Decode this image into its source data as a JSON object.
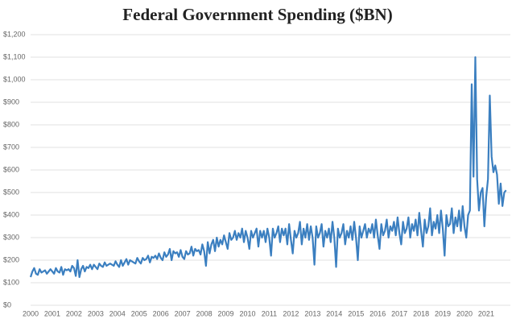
{
  "chart_data": {
    "type": "line",
    "title": "Federal Government Spending ($BN)",
    "categories": [
      "2000",
      null,
      null,
      null,
      null,
      null,
      null,
      null,
      null,
      null,
      null,
      null,
      "2001",
      null,
      null,
      null,
      null,
      null,
      null,
      null,
      null,
      null,
      null,
      null,
      "2002",
      null,
      null,
      null,
      null,
      null,
      null,
      null,
      null,
      null,
      null,
      null,
      "2003",
      null,
      null,
      null,
      null,
      null,
      null,
      null,
      null,
      null,
      null,
      null,
      "2004",
      null,
      null,
      null,
      null,
      null,
      null,
      null,
      null,
      null,
      null,
      null,
      "2005",
      null,
      null,
      null,
      null,
      null,
      null,
      null,
      null,
      null,
      null,
      null,
      "2006",
      null,
      null,
      null,
      null,
      null,
      null,
      null,
      null,
      null,
      null,
      null,
      "2007",
      null,
      null,
      null,
      null,
      null,
      null,
      null,
      null,
      null,
      null,
      null,
      "2008",
      null,
      null,
      null,
      null,
      null,
      null,
      null,
      null,
      null,
      null,
      null,
      "2009",
      null,
      null,
      null,
      null,
      null,
      null,
      null,
      null,
      null,
      null,
      null,
      "2010",
      null,
      null,
      null,
      null,
      null,
      null,
      null,
      null,
      null,
      null,
      null,
      "2011",
      null,
      null,
      null,
      null,
      null,
      null,
      null,
      null,
      null,
      null,
      null,
      "2012",
      null,
      null,
      null,
      null,
      null,
      null,
      null,
      null,
      null,
      null,
      null,
      "2013",
      null,
      null,
      null,
      null,
      null,
      null,
      null,
      null,
      null,
      null,
      null,
      "2014",
      null,
      null,
      null,
      null,
      null,
      null,
      null,
      null,
      null,
      null,
      null,
      "2015",
      null,
      null,
      null,
      null,
      null,
      null,
      null,
      null,
      null,
      null,
      null,
      "2016",
      null,
      null,
      null,
      null,
      null,
      null,
      null,
      null,
      null,
      null,
      null,
      "2017",
      null,
      null,
      null,
      null,
      null,
      null,
      null,
      null,
      null,
      null,
      null,
      "2018",
      null,
      null,
      null,
      null,
      null,
      null,
      null,
      null,
      null,
      null,
      null,
      "2019",
      null,
      null,
      null,
      null,
      null,
      null,
      null,
      null,
      null,
      null,
      null,
      "2020",
      null,
      null,
      null,
      null,
      null,
      null,
      null,
      null,
      null,
      null,
      null,
      "2021",
      null,
      null,
      null,
      null,
      null,
      null,
      null,
      null,
      null,
      null,
      null
    ],
    "series": [
      {
        "color": "#3b7fc0",
        "values": [
          125,
          150,
          165,
          140,
          135,
          160,
          145,
          150,
          155,
          140,
          150,
          160,
          150,
          140,
          165,
          150,
          145,
          170,
          135,
          160,
          155,
          160,
          150,
          175,
          165,
          130,
          200,
          125,
          160,
          175,
          150,
          170,
          165,
          180,
          160,
          180,
          170,
          160,
          185,
          175,
          170,
          190,
          175,
          180,
          185,
          180,
          175,
          195,
          180,
          170,
          200,
          175,
          190,
          205,
          180,
          200,
          195,
          190,
          185,
          210,
          195,
          185,
          210,
          200,
          205,
          220,
          190,
          215,
          210,
          220,
          205,
          230,
          210,
          200,
          235,
          215,
          225,
          250,
          200,
          240,
          230,
          235,
          215,
          245,
          215,
          205,
          240,
          225,
          230,
          260,
          220,
          250,
          240,
          245,
          225,
          270,
          240,
          175,
          280,
          230,
          270,
          290,
          240,
          300,
          260,
          290,
          270,
          310,
          280,
          250,
          320,
          290,
          300,
          330,
          290,
          320,
          300,
          340,
          280,
          330,
          300,
          250,
          330,
          300,
          320,
          340,
          260,
          330,
          300,
          330,
          280,
          340,
          300,
          220,
          340,
          300,
          320,
          350,
          280,
          340,
          310,
          340,
          270,
          360,
          290,
          230,
          330,
          300,
          320,
          370,
          270,
          340,
          300,
          360,
          290,
          350,
          300,
          180,
          350,
          300,
          320,
          360,
          260,
          330,
          300,
          340,
          280,
          370,
          300,
          170,
          340,
          300,
          320,
          360,
          270,
          330,
          300,
          350,
          290,
          370,
          300,
          200,
          350,
          300,
          330,
          360,
          300,
          340,
          320,
          360,
          300,
          380,
          310,
          250,
          360,
          310,
          330,
          380,
          300,
          350,
          330,
          370,
          310,
          390,
          320,
          270,
          370,
          320,
          340,
          390,
          300,
          360,
          330,
          380,
          310,
          410,
          330,
          260,
          380,
          320,
          350,
          430,
          310,
          370,
          340,
          400,
          320,
          420,
          340,
          220,
          400,
          350,
          360,
          430,
          320,
          390,
          350,
          420,
          330,
          440,
          350,
          300,
          400,
          420,
          980,
          570,
          1100,
          560,
          420,
          500,
          520,
          350,
          480,
          560,
          930,
          660,
          590,
          620,
          580,
          450,
          540,
          440,
          500,
          510
        ]
      }
    ],
    "ylim": [
      0,
      1200
    ],
    "yticks": [
      {
        "value": 0,
        "label": "$0"
      },
      {
        "value": 100,
        "label": "$100"
      },
      {
        "value": 200,
        "label": "$200"
      },
      {
        "value": 300,
        "label": "$300"
      },
      {
        "value": 400,
        "label": "$400"
      },
      {
        "value": 500,
        "label": "$500"
      },
      {
        "value": 600,
        "label": "$600"
      },
      {
        "value": 700,
        "label": "$700"
      },
      {
        "value": 800,
        "label": "$800"
      },
      {
        "value": 900,
        "label": "$900"
      },
      {
        "value": 1000,
        "label": "$1,000"
      },
      {
        "value": 1100,
        "label": "$1,100"
      },
      {
        "value": 1200,
        "label": "$1,200"
      }
    ],
    "grid": true
  }
}
